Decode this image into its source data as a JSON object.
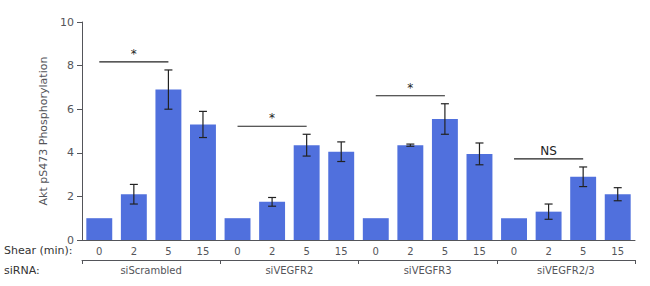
{
  "chart_data": {
    "type": "bar",
    "categories": [
      "0",
      "2",
      "5",
      "15",
      "0",
      "2",
      "5",
      "15",
      "0",
      "2",
      "5",
      "15",
      "0",
      "2",
      "5",
      "15"
    ],
    "groups": [
      "siScrambled",
      "siVEGFR2",
      "siVEGFR3",
      "siVEGFR2/3"
    ],
    "values": [
      1.0,
      2.1,
      6.9,
      5.3,
      1.0,
      1.75,
      4.35,
      4.05,
      1.0,
      4.35,
      5.55,
      3.95,
      1.0,
      1.3,
      2.9,
      2.1
    ],
    "errors": [
      0.0,
      0.45,
      0.9,
      0.6,
      0.0,
      0.2,
      0.5,
      0.45,
      0.0,
      0.05,
      0.7,
      0.5,
      0.0,
      0.35,
      0.45,
      0.3
    ],
    "x_label": "Shear (min):",
    "group_label": "siRNA:",
    "y_label": "Akt pS473 Phosphorylation",
    "ylim": [
      0,
      10
    ],
    "yticks": [
      0,
      2,
      4,
      6,
      8,
      10
    ],
    "grid": false,
    "annotations": [
      {
        "group": "siScrambled",
        "between": [
          "0",
          "5"
        ],
        "label": "*"
      },
      {
        "group": "siVEGFR2",
        "between": [
          "0",
          "5"
        ],
        "label": "*"
      },
      {
        "group": "siVEGFR3",
        "between": [
          "0",
          "5"
        ],
        "label": "*"
      },
      {
        "group": "siVEGFR2/3",
        "between": [
          "0",
          "5"
        ],
        "label": "NS"
      }
    ]
  }
}
